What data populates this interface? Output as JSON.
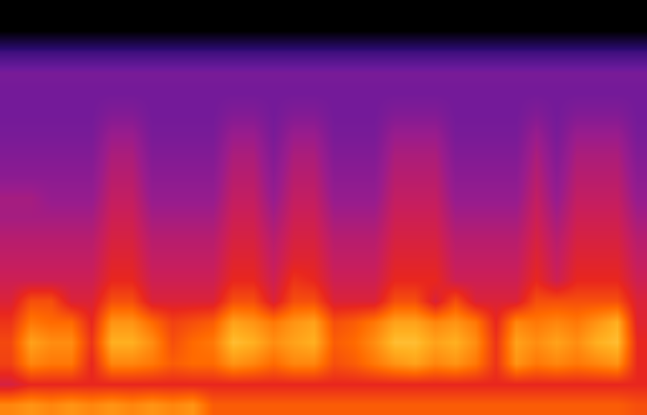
{
  "chart_data": {
    "type": "heatmap",
    "tick_labels": false,
    "grid": false,
    "xlim": [
      0,
      32
    ],
    "ylim": [
      0,
      20
    ],
    "zlim": [
      0,
      100
    ],
    "x": [
      0.5,
      1.5,
      2.5,
      3.5,
      4.5,
      5.5,
      6.5,
      7.5,
      8.5,
      9.5,
      10.5,
      11.5,
      12.5,
      13.5,
      14.5,
      15.5,
      16.5,
      17.5,
      18.5,
      19.5,
      20.5,
      21.5,
      22.5,
      23.5,
      24.5,
      25.5,
      26.5,
      27.5,
      28.5,
      29.5,
      30.5,
      31.5
    ],
    "y": [
      19.5,
      18.5,
      17.5,
      16.5,
      15.5,
      14.5,
      13.5,
      12.5,
      11.5,
      10.5,
      9.5,
      8.5,
      7.5,
      6.5,
      5.5,
      4.5,
      3.5,
      2.5,
      1.5,
      0.5
    ],
    "cells": [
      [
        0,
        0,
        0,
        0,
        0,
        0,
        0,
        0,
        0,
        0,
        0,
        0,
        0,
        0,
        0,
        0,
        0,
        0,
        0,
        0,
        0,
        0,
        0,
        0,
        0,
        0,
        0,
        0,
        0,
        0,
        0,
        0
      ],
      [
        0,
        0,
        0,
        0,
        0,
        0,
        0,
        0,
        0,
        0,
        0,
        0,
        0,
        0,
        0,
        0,
        0,
        0,
        0,
        0,
        0,
        0,
        0,
        0,
        0,
        0,
        0,
        0,
        0,
        0,
        0,
        0
      ],
      [
        35,
        35,
        35,
        35,
        35,
        35,
        35,
        35,
        35,
        35,
        35,
        35,
        35,
        35,
        35,
        35,
        35,
        35,
        35,
        35,
        35,
        35,
        35,
        35,
        35,
        35,
        35,
        35,
        35,
        35,
        35,
        35
      ],
      [
        48,
        48,
        48,
        48,
        48,
        48,
        48,
        48,
        48,
        48,
        48,
        48,
        48,
        48,
        48,
        48,
        48,
        48,
        48,
        48,
        48,
        48,
        48,
        48,
        48,
        48,
        48,
        48,
        48,
        48,
        48,
        48
      ],
      [
        47,
        47,
        47,
        47,
        47,
        47,
        47,
        47,
        47,
        47,
        47,
        47,
        47,
        47,
        47,
        47,
        47,
        47,
        47,
        47,
        47,
        47,
        47,
        47,
        47,
        47,
        47,
        47,
        47,
        47,
        47,
        47
      ],
      [
        47,
        47,
        47,
        47,
        47,
        50,
        50,
        47,
        47,
        47,
        47,
        50,
        50,
        47,
        50,
        50,
        47,
        47,
        47,
        50,
        50,
        50,
        47,
        47,
        47,
        47,
        50,
        47,
        50,
        50,
        50,
        47
      ],
      [
        48,
        48,
        48,
        48,
        48,
        55,
        55,
        48,
        48,
        48,
        48,
        55,
        55,
        48,
        55,
        55,
        48,
        48,
        48,
        55,
        55,
        55,
        48,
        48,
        48,
        48,
        55,
        48,
        55,
        55,
        55,
        48
      ],
      [
        50,
        50,
        50,
        50,
        50,
        58,
        58,
        50,
        50,
        50,
        50,
        58,
        58,
        50,
        58,
        58,
        50,
        50,
        50,
        58,
        58,
        58,
        50,
        50,
        50,
        50,
        58,
        50,
        58,
        58,
        58,
        50
      ],
      [
        52,
        52,
        52,
        52,
        52,
        60,
        60,
        52,
        52,
        52,
        52,
        60,
        60,
        52,
        60,
        60,
        52,
        52,
        52,
        60,
        60,
        60,
        52,
        52,
        52,
        52,
        60,
        52,
        60,
        60,
        60,
        52
      ],
      [
        57,
        57,
        54,
        54,
        54,
        62,
        62,
        54,
        54,
        54,
        54,
        62,
        62,
        54,
        62,
        62,
        54,
        54,
        54,
        62,
        62,
        62,
        54,
        54,
        54,
        54,
        62,
        54,
        62,
        62,
        62,
        54
      ],
      [
        57,
        57,
        57,
        57,
        57,
        64,
        64,
        57,
        57,
        57,
        57,
        64,
        64,
        57,
        64,
        64,
        57,
        57,
        57,
        64,
        64,
        64,
        57,
        57,
        57,
        57,
        64,
        57,
        64,
        64,
        64,
        57
      ],
      [
        60,
        60,
        60,
        60,
        60,
        66,
        66,
        60,
        60,
        60,
        60,
        66,
        66,
        60,
        66,
        66,
        60,
        60,
        60,
        66,
        66,
        66,
        60,
        60,
        60,
        60,
        66,
        60,
        66,
        66,
        66,
        60
      ],
      [
        62,
        62,
        62,
        62,
        62,
        68,
        68,
        62,
        62,
        62,
        62,
        68,
        68,
        62,
        68,
        68,
        62,
        62,
        62,
        68,
        68,
        68,
        62,
        62,
        62,
        62,
        68,
        62,
        68,
        68,
        68,
        62
      ],
      [
        64,
        64,
        64,
        64,
        64,
        70,
        70,
        64,
        64,
        64,
        64,
        70,
        70,
        64,
        72,
        70,
        64,
        64,
        64,
        70,
        70,
        70,
        64,
        64,
        64,
        64,
        70,
        64,
        70,
        70,
        70,
        64
      ],
      [
        67,
        76,
        76,
        67,
        67,
        76,
        76,
        67,
        67,
        67,
        67,
        76,
        76,
        67,
        76,
        76,
        67,
        67,
        67,
        76,
        76,
        67,
        76,
        67,
        67,
        67,
        76,
        76,
        76,
        76,
        76,
        67
      ],
      [
        72,
        82,
        80,
        80,
        70,
        86,
        86,
        80,
        74,
        76,
        78,
        88,
        86,
        82,
        86,
        88,
        76,
        78,
        82,
        88,
        88,
        84,
        86,
        82,
        70,
        84,
        82,
        84,
        82,
        86,
        90,
        68
      ],
      [
        75,
        88,
        85,
        85,
        72,
        90,
        90,
        85,
        76,
        80,
        82,
        92,
        90,
        85,
        88,
        90,
        78,
        80,
        85,
        92,
        92,
        88,
        90,
        85,
        72,
        88,
        85,
        88,
        85,
        90,
        92,
        70
      ],
      [
        74,
        84,
        82,
        82,
        70,
        84,
        84,
        82,
        78,
        80,
        80,
        86,
        84,
        80,
        84,
        84,
        76,
        78,
        82,
        86,
        88,
        84,
        86,
        82,
        72,
        86,
        82,
        84,
        82,
        84,
        86,
        70
      ],
      [
        66,
        70,
        70,
        70,
        70,
        70,
        70,
        70,
        70,
        70,
        70,
        70,
        70,
        70,
        70,
        70,
        70,
        70,
        70,
        70,
        70,
        70,
        70,
        70,
        70,
        70,
        70,
        70,
        70,
        70,
        70,
        70
      ],
      [
        84,
        86,
        84,
        86,
        84,
        86,
        84,
        86,
        84,
        86,
        78,
        78,
        78,
        78,
        78,
        78,
        78,
        78,
        78,
        78,
        78,
        78,
        78,
        78,
        78,
        78,
        78,
        78,
        78,
        78,
        78,
        76
      ]
    ]
  }
}
